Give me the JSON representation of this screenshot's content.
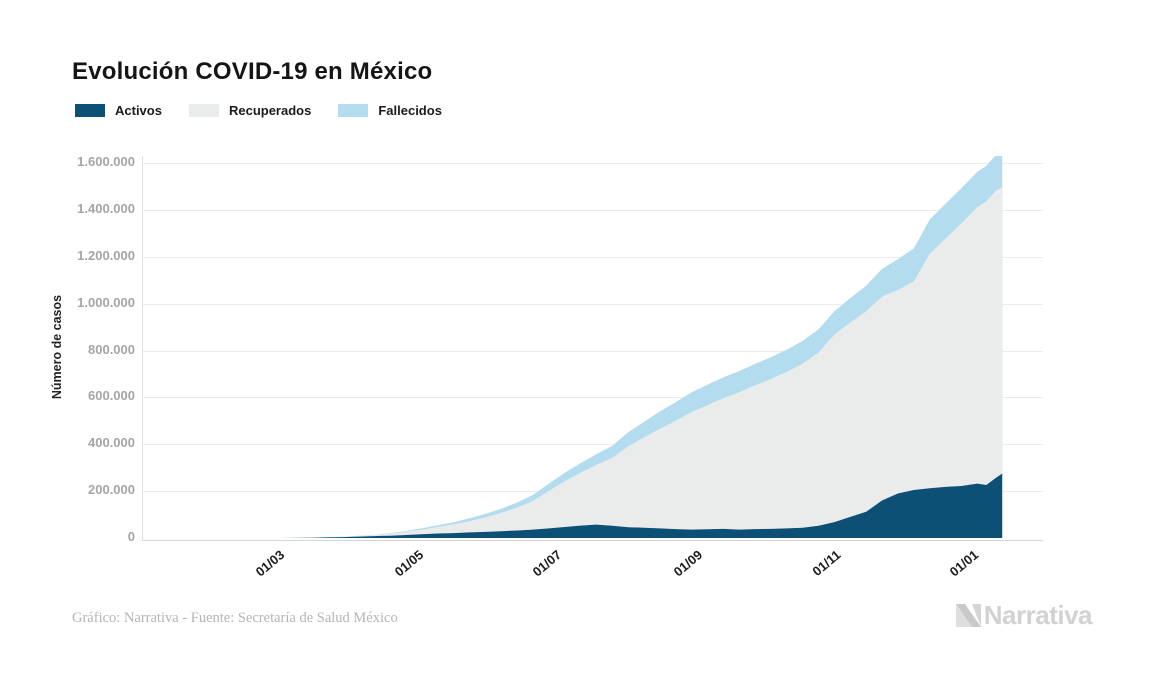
{
  "page": {
    "title": "Evolución COVID-19 en México"
  },
  "legend": {
    "items": [
      {
        "label": "Activos",
        "color": "#0d5076"
      },
      {
        "label": "Recuperados",
        "color": "#eaebeb"
      },
      {
        "label": "Fallecidos",
        "color": "#b3ddef"
      }
    ]
  },
  "footer": {
    "source": "Gráfico: Narrativa - Fuente: Secretaría de Salud México",
    "brand": "Narrativa"
  },
  "chart_data": {
    "type": "area",
    "stacked": true,
    "title": "Evolución COVID-19 en México",
    "xlabel": "",
    "ylabel": "Número de casos",
    "ylim": [
      0,
      1600000
    ],
    "grid": "horizontal",
    "legend_position": "top-left",
    "x_domain": [
      "2020-01-01",
      "2021-02-01"
    ],
    "x_ticks": [
      {
        "date": "2020-03-01",
        "label": "01/03"
      },
      {
        "date": "2020-05-01",
        "label": "01/05"
      },
      {
        "date": "2020-07-01",
        "label": "01/07"
      },
      {
        "date": "2020-09-01",
        "label": "01/09"
      },
      {
        "date": "2020-11-01",
        "label": "01/11"
      },
      {
        "date": "2021-01-01",
        "label": "01/01"
      }
    ],
    "y_ticks": [
      {
        "value": 0,
        "label": "0"
      },
      {
        "value": 200000,
        "label": "200.000"
      },
      {
        "value": 400000,
        "label": "400.000"
      },
      {
        "value": 600000,
        "label": "600.000"
      },
      {
        "value": 800000,
        "label": "800.000"
      },
      {
        "value": 1000000,
        "label": "1.000.000"
      },
      {
        "value": 1200000,
        "label": "1.200.000"
      },
      {
        "value": 1400000,
        "label": "1.400.000"
      },
      {
        "value": 1600000,
        "label": "1.600.000"
      }
    ],
    "series": [
      {
        "name": "Activos",
        "key": "activos",
        "color": "#0d5076"
      },
      {
        "name": "Recuperados",
        "key": "recuperados",
        "color": "#eaebeb"
      },
      {
        "name": "Fallecidos",
        "key": "fallecidos",
        "color": "#b3ddef"
      }
    ],
    "points": [
      {
        "date": "2020-01-01",
        "activos": 0,
        "recuperados": 0,
        "fallecidos": 0
      },
      {
        "date": "2020-02-15",
        "activos": 0,
        "recuperados": 0,
        "fallecidos": 0
      },
      {
        "date": "2020-03-01",
        "activos": 200,
        "recuperados": 0,
        "fallecidos": 0
      },
      {
        "date": "2020-03-08",
        "activos": 500,
        "recuperados": 50,
        "fallecidos": 5
      },
      {
        "date": "2020-03-15",
        "activos": 1200,
        "recuperados": 200,
        "fallecidos": 20
      },
      {
        "date": "2020-03-22",
        "activos": 2500,
        "recuperados": 600,
        "fallecidos": 100
      },
      {
        "date": "2020-03-29",
        "activos": 4000,
        "recuperados": 1500,
        "fallecidos": 200
      },
      {
        "date": "2020-04-05",
        "activos": 6000,
        "recuperados": 3000,
        "fallecidos": 500
      },
      {
        "date": "2020-04-12",
        "activos": 8000,
        "recuperados": 5000,
        "fallecidos": 1200
      },
      {
        "date": "2020-04-19",
        "activos": 10000,
        "recuperados": 8000,
        "fallecidos": 2200
      },
      {
        "date": "2020-04-26",
        "activos": 13000,
        "recuperados": 13000,
        "fallecidos": 3600
      },
      {
        "date": "2020-05-03",
        "activos": 16000,
        "recuperados": 20000,
        "fallecidos": 5500
      },
      {
        "date": "2020-05-10",
        "activos": 19000,
        "recuperados": 28000,
        "fallecidos": 7500
      },
      {
        "date": "2020-05-17",
        "activos": 21000,
        "recuperados": 37000,
        "fallecidos": 9500
      },
      {
        "date": "2020-05-24",
        "activos": 24000,
        "recuperados": 48000,
        "fallecidos": 12000
      },
      {
        "date": "2020-05-31",
        "activos": 26000,
        "recuperados": 62000,
        "fallecidos": 15000
      },
      {
        "date": "2020-06-07",
        "activos": 29000,
        "recuperados": 78000,
        "fallecidos": 18000
      },
      {
        "date": "2020-06-14",
        "activos": 32000,
        "recuperados": 98000,
        "fallecidos": 21500
      },
      {
        "date": "2020-06-21",
        "activos": 36000,
        "recuperados": 122000,
        "fallecidos": 26000
      },
      {
        "date": "2020-06-28",
        "activos": 41000,
        "recuperados": 160000,
        "fallecidos": 31000
      },
      {
        "date": "2020-07-05",
        "activos": 47000,
        "recuperados": 195000,
        "fallecidos": 36000
      },
      {
        "date": "2020-07-12",
        "activos": 53000,
        "recuperados": 225000,
        "fallecidos": 41000
      },
      {
        "date": "2020-07-19",
        "activos": 57000,
        "recuperados": 255000,
        "fallecidos": 46000
      },
      {
        "date": "2020-07-26",
        "activos": 52000,
        "recuperados": 290000,
        "fallecidos": 52000
      },
      {
        "date": "2020-08-02",
        "activos": 46000,
        "recuperados": 345000,
        "fallecidos": 60000
      },
      {
        "date": "2020-08-09",
        "activos": 44000,
        "recuperados": 385000,
        "fallecidos": 67000
      },
      {
        "date": "2020-08-16",
        "activos": 41000,
        "recuperados": 425000,
        "fallecidos": 74000
      },
      {
        "date": "2020-08-23",
        "activos": 38000,
        "recuperados": 462000,
        "fallecidos": 79000
      },
      {
        "date": "2020-08-30",
        "activos": 36000,
        "recuperados": 502000,
        "fallecidos": 84000
      },
      {
        "date": "2020-09-06",
        "activos": 37000,
        "recuperados": 530000,
        "fallecidos": 87000
      },
      {
        "date": "2020-09-13",
        "activos": 39000,
        "recuperados": 558000,
        "fallecidos": 89000
      },
      {
        "date": "2020-09-20",
        "activos": 36000,
        "recuperados": 586000,
        "fallecidos": 90000
      },
      {
        "date": "2020-09-27",
        "activos": 38000,
        "recuperados": 614000,
        "fallecidos": 91000
      },
      {
        "date": "2020-10-04",
        "activos": 39000,
        "recuperados": 640000,
        "fallecidos": 93000
      },
      {
        "date": "2020-10-11",
        "activos": 41000,
        "recuperados": 668000,
        "fallecidos": 95000
      },
      {
        "date": "2020-10-18",
        "activos": 44000,
        "recuperados": 700000,
        "fallecidos": 97000
      },
      {
        "date": "2020-10-25",
        "activos": 52000,
        "recuperados": 740000,
        "fallecidos": 99000
      },
      {
        "date": "2020-11-01",
        "activos": 68000,
        "recuperados": 800000,
        "fallecidos": 100000
      },
      {
        "date": "2020-11-08",
        "activos": 90000,
        "recuperados": 830000,
        "fallecidos": 104000
      },
      {
        "date": "2020-11-15",
        "activos": 112000,
        "recuperados": 855000,
        "fallecidos": 110000
      },
      {
        "date": "2020-11-22",
        "activos": 160000,
        "recuperados": 870000,
        "fallecidos": 118000
      },
      {
        "date": "2020-11-29",
        "activos": 190000,
        "recuperados": 868000,
        "fallecidos": 132000
      },
      {
        "date": "2020-12-06",
        "activos": 205000,
        "recuperados": 890000,
        "fallecidos": 140000
      },
      {
        "date": "2020-12-13",
        "activos": 212000,
        "recuperados": 1000000,
        "fallecidos": 146000
      },
      {
        "date": "2020-12-20",
        "activos": 218000,
        "recuperados": 1060000,
        "fallecidos": 148000
      },
      {
        "date": "2020-12-27",
        "activos": 222000,
        "recuperados": 1120000,
        "fallecidos": 150000
      },
      {
        "date": "2021-01-03",
        "activos": 232000,
        "recuperados": 1180000,
        "fallecidos": 151000
      },
      {
        "date": "2021-01-07",
        "activos": 226000,
        "recuperados": 1210000,
        "fallecidos": 152000
      },
      {
        "date": "2021-01-11",
        "activos": 255000,
        "recuperados": 1225000,
        "fallecidos": 152000
      },
      {
        "date": "2021-01-14",
        "activos": 275000,
        "recuperados": 1222000,
        "fallecidos": 152000
      }
    ]
  }
}
